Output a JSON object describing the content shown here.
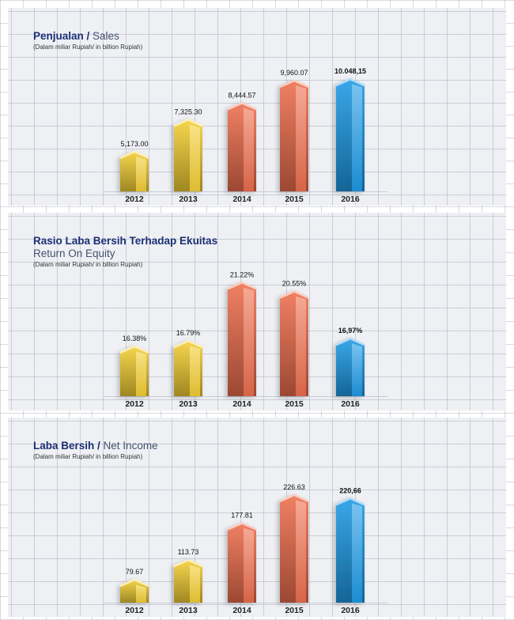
{
  "chart_data": [
    {
      "id": "sales",
      "type": "bar",
      "title": "Penjualan",
      "title_en": "Sales",
      "subtitle": "(Dalam miliar Rupiah/ in billion Rupiah)",
      "categories": [
        "2012",
        "2013",
        "2014",
        "2015",
        "2016"
      ],
      "values": [
        5173.0,
        7325.3,
        8444.57,
        9960.07,
        10048.15
      ],
      "value_labels": [
        "5,173.00",
        "7,325.30",
        "8,444.57",
        "9,960.07",
        "10.048,15"
      ],
      "ylim": [
        2500,
        10700
      ],
      "bar_colors": [
        "#f5cf35",
        "#f5cf35",
        "#ee6f4e",
        "#ee6f4e",
        "#1f9be6"
      ],
      "highlight_index": 4,
      "grid": true
    },
    {
      "id": "roe",
      "type": "bar",
      "title": "Rasio Laba Bersih Terhadap Ekuitas",
      "title_en": "Return On Equity",
      "subtitle": "(Dalam miliar Rupiah/ in billion Rupiah)",
      "categories": [
        "2012",
        "2013",
        "2014",
        "2015",
        "2016"
      ],
      "values": [
        16.38,
        16.79,
        21.22,
        20.55,
        16.97
      ],
      "value_labels": [
        "16.38%",
        "16.79%",
        "21.22%",
        "20.55%",
        "16,97%"
      ],
      "ylim": [
        12.6,
        22.2
      ],
      "bar_colors": [
        "#f5cf35",
        "#f5cf35",
        "#ee6f4e",
        "#ee6f4e",
        "#1f9be6"
      ],
      "highlight_index": 4,
      "grid": true
    },
    {
      "id": "net-income",
      "type": "bar",
      "title": "Laba Bersih",
      "title_en": "Net Income",
      "subtitle": "(Dalam miliar Rupiah/ in billion Rupiah)",
      "categories": [
        "2012",
        "2013",
        "2014",
        "2015",
        "2016"
      ],
      "values": [
        79.67,
        113.73,
        177.81,
        226.63,
        220.66
      ],
      "value_labels": [
        "79.67",
        "113.73",
        "177.81",
        "226.63",
        "220,66"
      ],
      "ylim": [
        40,
        232
      ],
      "bar_colors": [
        "#f5cf35",
        "#f5cf35",
        "#ee6f4e",
        "#ee6f4e",
        "#1f9be6"
      ],
      "highlight_index": 4,
      "grid": true
    }
  ]
}
